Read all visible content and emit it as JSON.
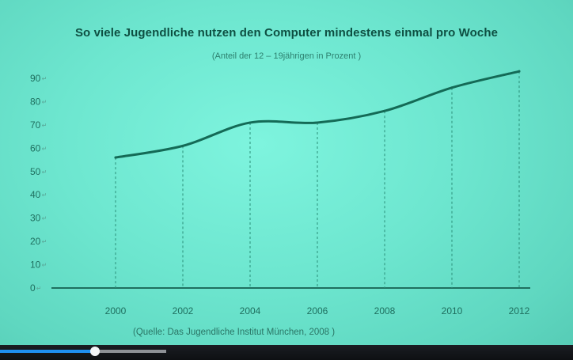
{
  "chart_data": {
    "type": "line",
    "title": "So viele Jugendliche nutzen den Computer mindestens einmal pro Woche",
    "subtitle": "(Anteil der 12 – 19jährigen in Prozent )",
    "source": "(Quelle: Das Jugendliche Institut München,    2008 )",
    "x": [
      "2000",
      "2002",
      "2004",
      "2006",
      "2008",
      "2010",
      "2012"
    ],
    "xticks": [
      "2000",
      "2002",
      "2004",
      "2006",
      "2008",
      "2010",
      "2012"
    ],
    "yticks": [
      "0",
      "10",
      "20",
      "30",
      "40",
      "50",
      "60",
      "70",
      "80",
      "90"
    ],
    "series": [
      {
        "values": [
          56,
          61,
          71,
          71,
          76,
          86,
          93
        ]
      }
    ],
    "ylim": [
      0,
      90
    ],
    "grid": false,
    "drop_lines": true,
    "colors": {
      "line": "#146a56",
      "axis": "#1f6f5f",
      "drop_lines": "#2a8f79"
    }
  },
  "player": {
    "progress": 0.16
  }
}
